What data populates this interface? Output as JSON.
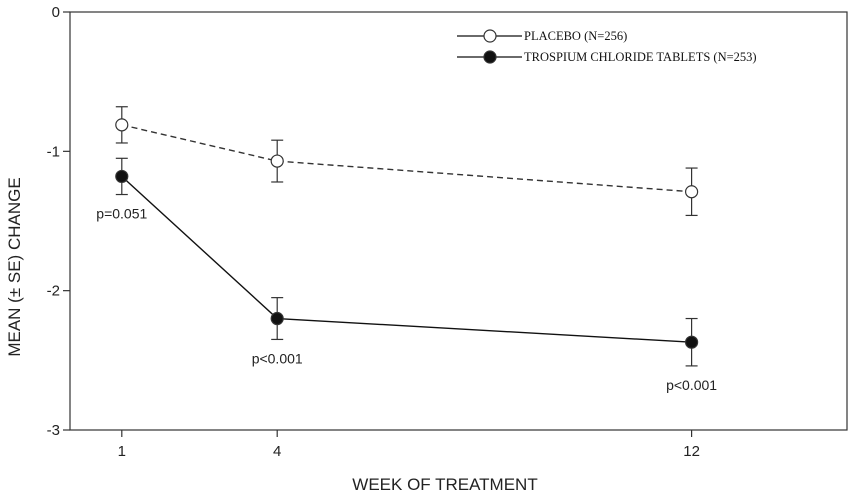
{
  "chart_data": {
    "type": "line",
    "title": "",
    "xlabel": "WEEK OF TREATMENT",
    "ylabel": "MEAN (± SE) CHANGE",
    "x": [
      1,
      4,
      12
    ],
    "x_ticks": [
      "1",
      "4",
      "12"
    ],
    "y_ticks": [
      "0",
      "-1",
      "-2",
      "-3"
    ],
    "xlim": [
      0,
      15
    ],
    "ylim": [
      -3,
      0
    ],
    "grid": false,
    "legend_position": "top-right",
    "series": [
      {
        "name": "PLACEBO (N=256)",
        "values": [
          -0.81,
          -1.07,
          -1.29
        ],
        "se": [
          0.13,
          0.15,
          0.17
        ],
        "line_style": "dashed",
        "marker": "open-circle",
        "color": "#333333"
      },
      {
        "name": "TROSPIUM CHLORIDE TABLETS (N=253)",
        "values": [
          -1.18,
          -2.2,
          -2.37
        ],
        "se": [
          0.13,
          0.15,
          0.17
        ],
        "line_style": "solid",
        "marker": "filled-circle",
        "color": "#111111"
      }
    ],
    "annotations": [
      {
        "text": "p=0.051",
        "x": 1,
        "series": 1
      },
      {
        "text": "p<0.001",
        "x": 4,
        "series": 1
      },
      {
        "text": "p<0.001",
        "x": 12,
        "series": 1
      }
    ]
  }
}
